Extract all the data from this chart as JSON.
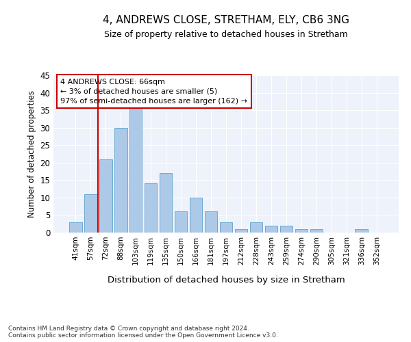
{
  "title1": "4, ANDREWS CLOSE, STRETHAM, ELY, CB6 3NG",
  "title2": "Size of property relative to detached houses in Stretham",
  "xlabel": "Distribution of detached houses by size in Stretham",
  "ylabel": "Number of detached properties",
  "categories": [
    "41sqm",
    "57sqm",
    "72sqm",
    "88sqm",
    "103sqm",
    "119sqm",
    "135sqm",
    "150sqm",
    "166sqm",
    "181sqm",
    "197sqm",
    "212sqm",
    "228sqm",
    "243sqm",
    "259sqm",
    "274sqm",
    "290sqm",
    "305sqm",
    "321sqm",
    "336sqm",
    "352sqm"
  ],
  "values": [
    3,
    11,
    21,
    30,
    36,
    14,
    17,
    6,
    10,
    6,
    3,
    1,
    3,
    2,
    2,
    1,
    1,
    0,
    0,
    1,
    0
  ],
  "bar_color": "#adc9e8",
  "bar_edge_color": "#6aaad4",
  "vline_x_index": 1.5,
  "vline_color": "#cc0000",
  "annotation_text": "4 ANDREWS CLOSE: 66sqm\n← 3% of detached houses are smaller (5)\n97% of semi-detached houses are larger (162) →",
  "annotation_box_color": "#ffffff",
  "annotation_box_edge_color": "#cc0000",
  "ylim": [
    0,
    45
  ],
  "yticks": [
    0,
    5,
    10,
    15,
    20,
    25,
    30,
    35,
    40,
    45
  ],
  "bg_color": "#eef2fa",
  "grid_color": "#ffffff",
  "footer": "Contains HM Land Registry data © Crown copyright and database right 2024.\nContains public sector information licensed under the Open Government Licence v3.0."
}
